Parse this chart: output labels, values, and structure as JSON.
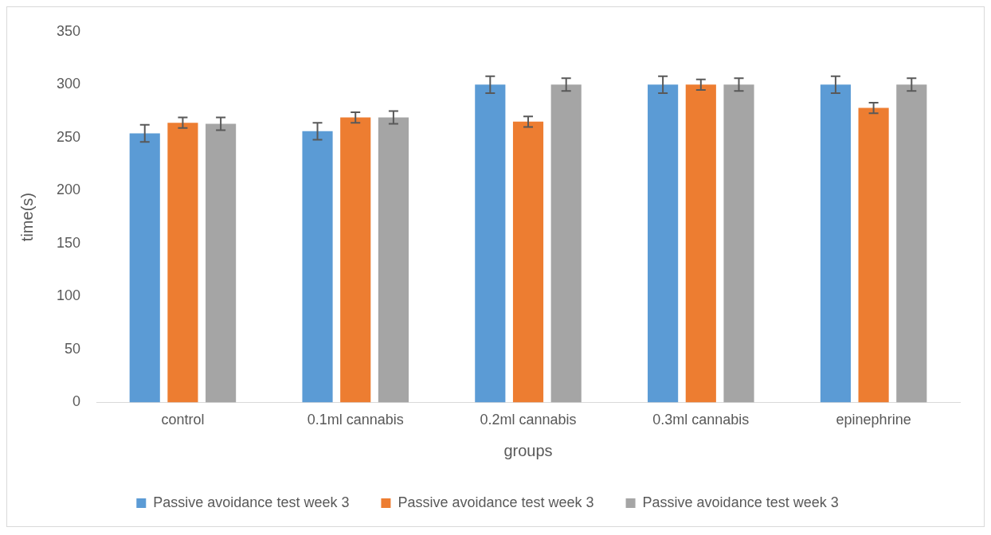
{
  "chart_data": {
    "type": "bar",
    "xlabel": "groups",
    "ylabel": "time(s)",
    "categories": [
      "control",
      "0.1ml cannabis",
      "0.2ml cannabis",
      "0.3ml cannabis",
      "epinephrine"
    ],
    "series": [
      {
        "name": "Passive avoidance test week 3",
        "color": "#5b9bd5",
        "values": [
          254,
          256,
          300,
          300,
          300
        ],
        "errors": [
          8,
          8,
          8,
          8,
          8
        ]
      },
      {
        "name": "Passive avoidance test week 3",
        "color": "#ed7d31",
        "values": [
          264,
          269,
          265,
          300,
          278
        ],
        "errors": [
          5,
          5,
          5,
          5,
          5
        ]
      },
      {
        "name": "Passive avoidance test week 3",
        "color": "#a5a5a5",
        "values": [
          263,
          269,
          300,
          300,
          300
        ],
        "errors": [
          6,
          6,
          6,
          6,
          6
        ]
      }
    ],
    "ylim": [
      0,
      350
    ],
    "yticks": [
      0,
      50,
      100,
      150,
      200,
      250,
      300,
      350
    ],
    "grid": false,
    "legend": "bottom"
  }
}
